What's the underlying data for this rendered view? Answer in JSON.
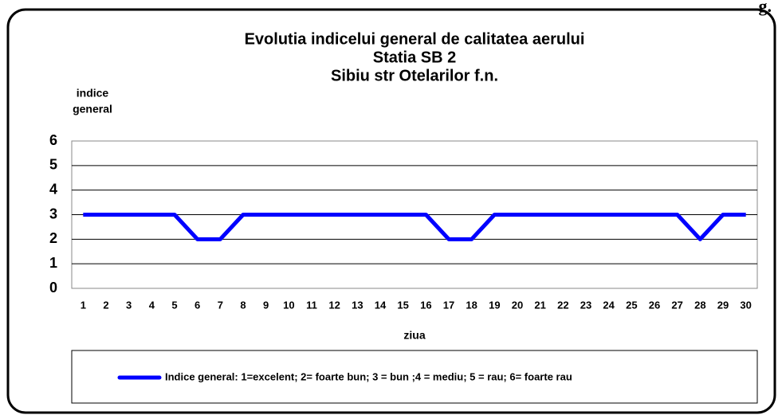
{
  "corner_text": "g.",
  "chart_data": {
    "type": "line",
    "title": [
      "Evolutia indicelui  general de calitatea aerului",
      "Statia SB 2",
      "Sibiu str Otelarilor f.n."
    ],
    "y_label": [
      "indice",
      "general"
    ],
    "x_label": "ziua",
    "categories": [
      "1",
      "2",
      "3",
      "4",
      "5",
      "6",
      "7",
      "8",
      "9",
      "10",
      "11",
      "12",
      "13",
      "14",
      "15",
      "16",
      "17",
      "18",
      "19",
      "20",
      "21",
      "22",
      "23",
      "24",
      "25",
      "26",
      "27",
      "28",
      "29",
      "30"
    ],
    "series": [
      {
        "name": "Indice general: 1=excelent; 2= foarte bun; 3 = bun ;4 = mediu; 5 = rau; 6= foarte rau",
        "color": "#0000ff",
        "values": [
          3,
          3,
          3,
          3,
          3,
          2,
          2,
          3,
          3,
          3,
          3,
          3,
          3,
          3,
          3,
          3,
          2,
          2,
          3,
          3,
          3,
          3,
          3,
          3,
          3,
          3,
          3,
          2,
          3,
          3
        ]
      }
    ],
    "ylim": [
      0,
      6
    ],
    "yticks": [
      0,
      1,
      2,
      3,
      4,
      5,
      6
    ],
    "grid": true,
    "legend": "bottom"
  }
}
